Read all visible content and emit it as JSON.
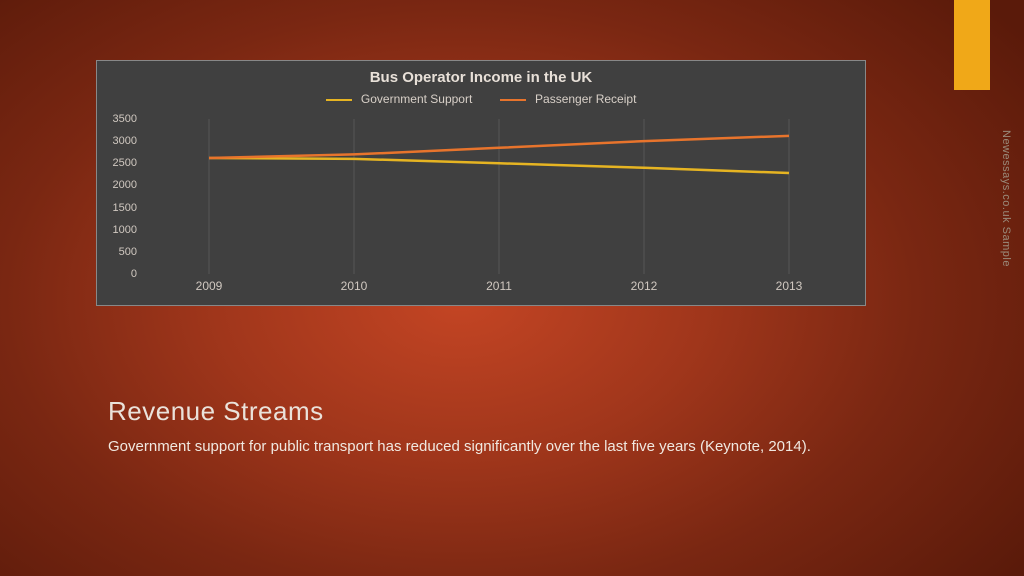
{
  "accent": {
    "color": "#f0a818"
  },
  "watermark": {
    "text": "Newessays.co.uk Sample",
    "color": "#9a8a7a"
  },
  "chart": {
    "type": "line",
    "title": "Bus Operator Income in the UK",
    "title_fontsize": 15,
    "background_color": "#404040",
    "border_color": "#888888",
    "grid_color": "#666666",
    "text_color": "#d0c8c0",
    "ylim": [
      0,
      3500
    ],
    "ytick_step": 500,
    "yticks": [
      0,
      500,
      1000,
      1500,
      2000,
      2500,
      3000,
      3500
    ],
    "categories": [
      "2009",
      "2010",
      "2011",
      "2012",
      "2013"
    ],
    "line_width": 2.5,
    "legend": {
      "items": [
        {
          "label": "Government Support",
          "color": "#e6b422"
        },
        {
          "label": "Passenger Receipt",
          "color": "#e8742c"
        }
      ]
    },
    "series": [
      {
        "name": "Government Support",
        "color": "#e6b422",
        "values": [
          2620,
          2600,
          2500,
          2400,
          2280
        ]
      },
      {
        "name": "Passenger Receipt",
        "color": "#e8742c",
        "values": [
          2620,
          2700,
          2850,
          3000,
          3120
        ]
      }
    ]
  },
  "heading": "Revenue Streams",
  "body": "Government support for public transport has reduced significantly over the last five years (Keynote, 2014)."
}
